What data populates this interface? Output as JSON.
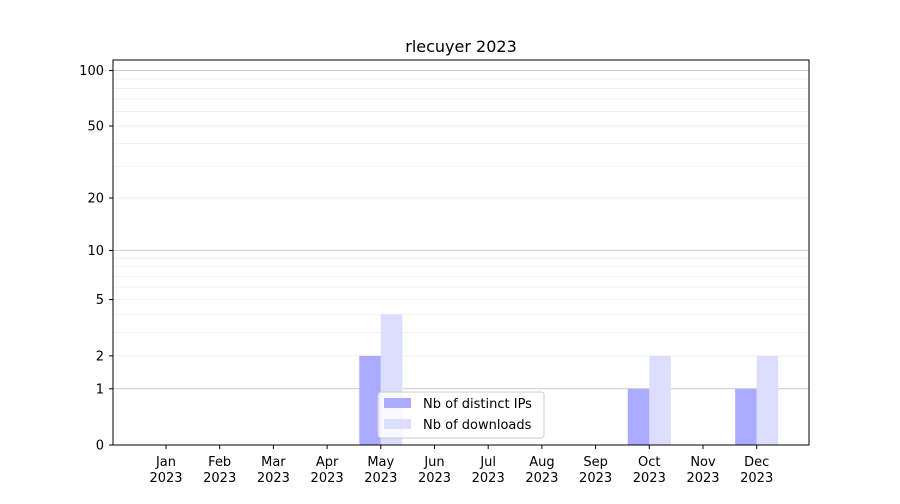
{
  "chart_data": {
    "type": "bar",
    "title": "rlecuyer 2023",
    "xlabel": "",
    "ylabel": "",
    "categories": [
      "Jan\n2023",
      "Feb\n2023",
      "Mar\n2023",
      "Apr\n2023",
      "May\n2023",
      "Jun\n2023",
      "Jul\n2023",
      "Aug\n2023",
      "Sep\n2023",
      "Oct\n2023",
      "Nov\n2023",
      "Dec\n2023"
    ],
    "series": [
      {
        "name": "Nb of distinct IPs",
        "color": "#aaaaff",
        "values": [
          0,
          0,
          0,
          0,
          2,
          0,
          0,
          0,
          0,
          1,
          0,
          1
        ]
      },
      {
        "name": "Nb of downloads",
        "color": "#ddddff",
        "values": [
          0,
          0,
          0,
          0,
          4,
          0,
          0,
          0,
          0,
          2,
          0,
          2
        ]
      }
    ],
    "yscale": "log(y+1)",
    "yticks": [
      0,
      1,
      2,
      5,
      10,
      20,
      50,
      100
    ],
    "ylim": [
      0,
      114
    ],
    "grid": true,
    "legend": "bottom-center"
  }
}
